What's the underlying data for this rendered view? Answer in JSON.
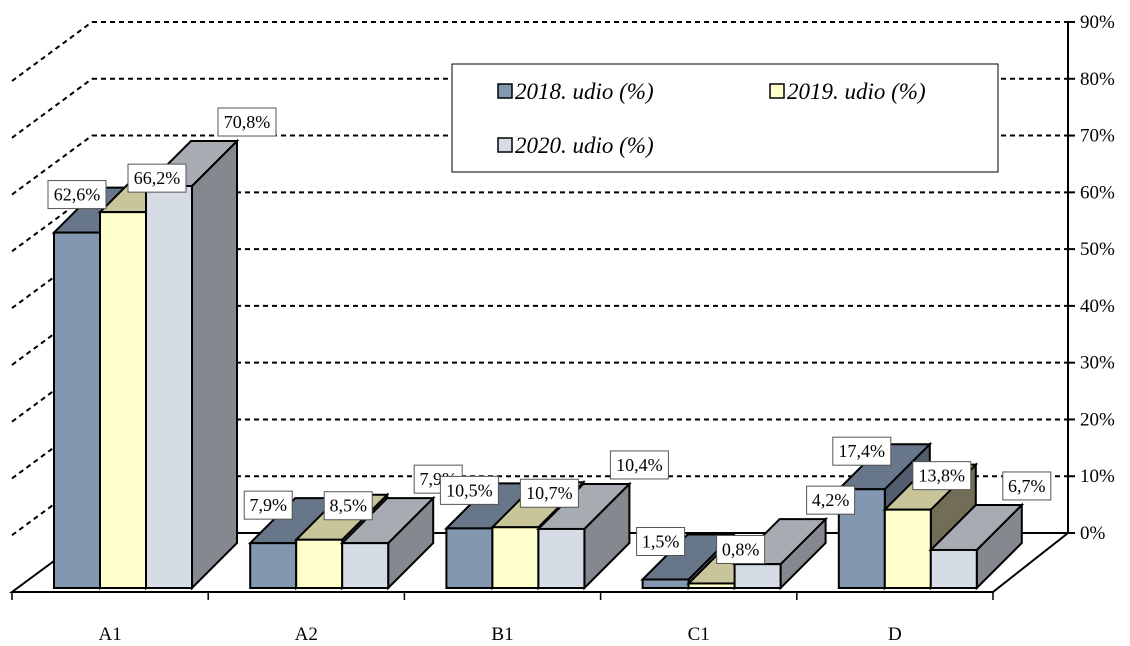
{
  "chart_data": {
    "type": "bar",
    "title": "",
    "xlabel": "",
    "ylabel": "",
    "ylim": [
      0,
      90
    ],
    "y_ticks": [
      "0%",
      "10%",
      "20%",
      "30%",
      "40%",
      "50%",
      "60%",
      "70%",
      "80%",
      "90%"
    ],
    "categories": [
      "A1",
      "A2",
      "B1",
      "C1",
      "D"
    ],
    "series": [
      {
        "name": "2018. udio (%)",
        "values": [
          62.6,
          7.9,
          10.5,
          1.5,
          17.4
        ],
        "labels": [
          "62,6%",
          "7,9%",
          "10,5%",
          "1,5%",
          "17,4%"
        ],
        "color": "#8497b0"
      },
      {
        "name": "2019. udio (%)",
        "values": [
          66.2,
          8.5,
          10.7,
          0.8,
          13.8
        ],
        "labels": [
          "66,2%",
          "8,5%",
          "10,7%",
          "0,8%",
          "13,8%"
        ],
        "color": "#ffffcc"
      },
      {
        "name": "2020. udio (%)",
        "values": [
          70.8,
          7.9,
          10.4,
          4.2,
          6.7
        ],
        "labels": [
          "70,8%",
          "7,9%",
          "10,4%",
          "4,2%",
          "6,7%"
        ],
        "color": "#d6dce5"
      }
    ],
    "grid": true,
    "gridline_style": "dashed",
    "legend_position": "top-right",
    "style": "3d-clustered-column"
  }
}
